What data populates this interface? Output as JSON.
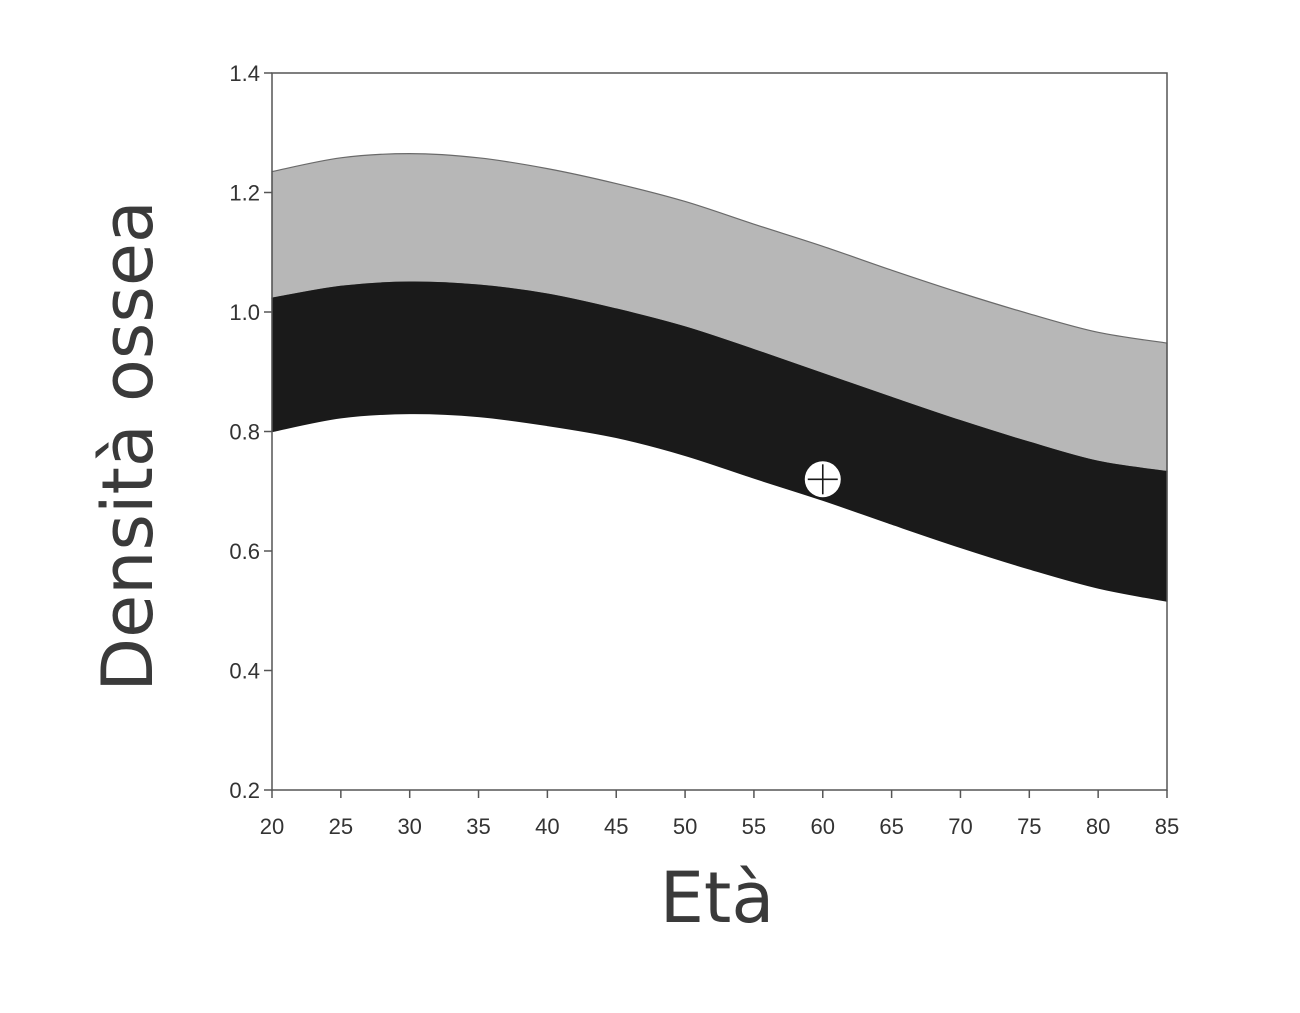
{
  "chart_data": {
    "type": "area",
    "title": "",
    "xlabel": "Età",
    "ylabel": "Densità ossea",
    "xlim": [
      20,
      85
    ],
    "ylim": [
      0.2,
      1.4
    ],
    "x_ticks": [
      "20",
      "25",
      "30",
      "35",
      "40",
      "45",
      "50",
      "55",
      "60",
      "65",
      "70",
      "75",
      "80",
      "85"
    ],
    "y_ticks": [
      "0.2",
      "0.4",
      "0.6",
      "0.8",
      "1.0",
      "1.2",
      "1.4"
    ],
    "grid": false,
    "legend": "none",
    "x": [
      20,
      25,
      30,
      35,
      40,
      45,
      50,
      55,
      60,
      65,
      70,
      75,
      80,
      85
    ],
    "series": [
      {
        "color": "#b7b7b7",
        "upper": [
          1.235,
          1.258,
          1.265,
          1.258,
          1.24,
          1.215,
          1.185,
          1.147,
          1.11,
          1.07,
          1.032,
          0.997,
          0.966,
          0.948
        ],
        "lower": [
          1.023,
          1.043,
          1.05,
          1.045,
          1.03,
          1.005,
          0.975,
          0.937,
          0.897,
          0.857,
          0.818,
          0.782,
          0.75,
          0.733
        ]
      },
      {
        "color": "#1a1a1a",
        "upper": [
          1.023,
          1.043,
          1.05,
          1.045,
          1.03,
          1.005,
          0.975,
          0.937,
          0.897,
          0.857,
          0.818,
          0.782,
          0.75,
          0.733
        ],
        "lower": [
          0.8,
          0.823,
          0.83,
          0.825,
          0.81,
          0.79,
          0.76,
          0.722,
          0.685,
          0.645,
          0.606,
          0.57,
          0.538,
          0.516
        ]
      }
    ],
    "marker": {
      "x": 60,
      "y": 0.72,
      "symbol": "crosshair-circle",
      "color": "#ffffff"
    }
  }
}
